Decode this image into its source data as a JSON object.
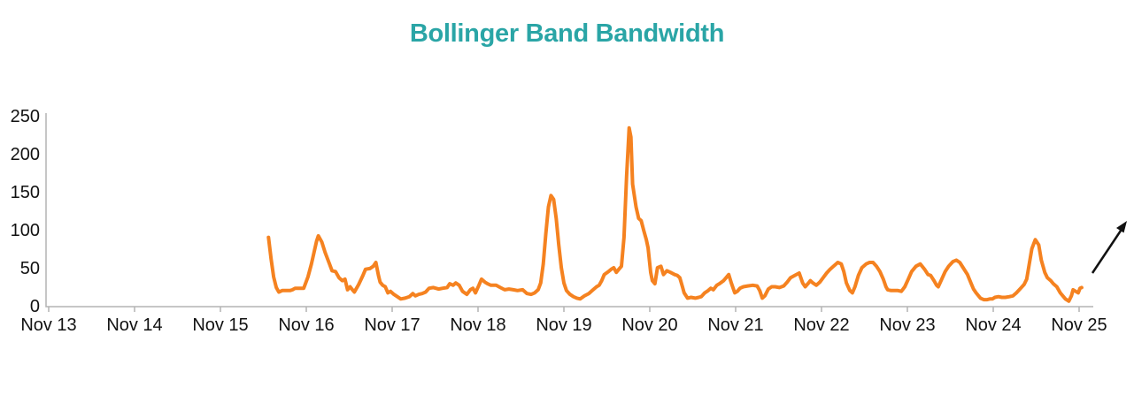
{
  "chart_data": {
    "type": "line",
    "title": "Bollinger Band Bandwidth",
    "xlabel": "",
    "ylabel": "",
    "grid": false,
    "legend": "none",
    "x_tick_labels": [
      "Nov 13",
      "Nov 14",
      "Nov 15",
      "Nov 16",
      "Nov 17",
      "Nov 18",
      "Nov 19",
      "Nov 20",
      "Nov 21",
      "Nov 22",
      "Nov 23",
      "Nov 24",
      "Nov 25"
    ],
    "y_tick_values": [
      0,
      50,
      100,
      150,
      200,
      250
    ],
    "ylim": [
      0,
      250
    ],
    "x_unit": "days since Nov 13 (fractional = intraday)",
    "series": [
      {
        "name": "Bollinger Band Bandwidth",
        "color": "#F58220",
        "points": [
          [
            2.56,
            90
          ],
          [
            2.59,
            62
          ],
          [
            2.62,
            38
          ],
          [
            2.65,
            24
          ],
          [
            2.68,
            18
          ],
          [
            2.72,
            20
          ],
          [
            2.77,
            20
          ],
          [
            2.81,
            20
          ],
          [
            2.84,
            21
          ],
          [
            2.87,
            23
          ],
          [
            2.92,
            23
          ],
          [
            2.97,
            23
          ],
          [
            3.02,
            38
          ],
          [
            3.06,
            55
          ],
          [
            3.09,
            70
          ],
          [
            3.12,
            85
          ],
          [
            3.14,
            92
          ],
          [
            3.18,
            84
          ],
          [
            3.22,
            70
          ],
          [
            3.27,
            55
          ],
          [
            3.3,
            46
          ],
          [
            3.34,
            45
          ],
          [
            3.38,
            37
          ],
          [
            3.42,
            33
          ],
          [
            3.45,
            35
          ],
          [
            3.48,
            21
          ],
          [
            3.51,
            25
          ],
          [
            3.53,
            22
          ],
          [
            3.56,
            18
          ],
          [
            3.61,
            28
          ],
          [
            3.66,
            40
          ],
          [
            3.69,
            48
          ],
          [
            3.74,
            49
          ],
          [
            3.78,
            52
          ],
          [
            3.81,
            57
          ],
          [
            3.84,
            40
          ],
          [
            3.86,
            31
          ],
          [
            3.89,
            27
          ],
          [
            3.92,
            25
          ],
          [
            3.95,
            17
          ],
          [
            3.98,
            19
          ],
          [
            4.02,
            15
          ],
          [
            4.06,
            12
          ],
          [
            4.1,
            9
          ],
          [
            4.15,
            10
          ],
          [
            4.2,
            12
          ],
          [
            4.24,
            16
          ],
          [
            4.27,
            13
          ],
          [
            4.31,
            15
          ],
          [
            4.35,
            16
          ],
          [
            4.39,
            18
          ],
          [
            4.43,
            23
          ],
          [
            4.48,
            24
          ],
          [
            4.54,
            22
          ],
          [
            4.59,
            23
          ],
          [
            4.64,
            24
          ],
          [
            4.67,
            29
          ],
          [
            4.71,
            27
          ],
          [
            4.74,
            30
          ],
          [
            4.78,
            27
          ],
          [
            4.82,
            19
          ],
          [
            4.87,
            15
          ],
          [
            4.91,
            21
          ],
          [
            4.94,
            23
          ],
          [
            4.97,
            17
          ],
          [
            5.01,
            27
          ],
          [
            5.04,
            35
          ],
          [
            5.08,
            31
          ],
          [
            5.11,
            29
          ],
          [
            5.15,
            27
          ],
          [
            5.21,
            27
          ],
          [
            5.26,
            24
          ],
          [
            5.31,
            21
          ],
          [
            5.36,
            22
          ],
          [
            5.41,
            21
          ],
          [
            5.46,
            20
          ],
          [
            5.52,
            21
          ],
          [
            5.57,
            16
          ],
          [
            5.62,
            15
          ],
          [
            5.66,
            17
          ],
          [
            5.7,
            21
          ],
          [
            5.73,
            30
          ],
          [
            5.76,
            55
          ],
          [
            5.79,
            95
          ],
          [
            5.82,
            130
          ],
          [
            5.85,
            145
          ],
          [
            5.88,
            140
          ],
          [
            5.91,
            115
          ],
          [
            5.94,
            80
          ],
          [
            5.97,
            50
          ],
          [
            6.0,
            30
          ],
          [
            6.03,
            20
          ],
          [
            6.07,
            15
          ],
          [
            6.11,
            12
          ],
          [
            6.15,
            10
          ],
          [
            6.19,
            9
          ],
          [
            6.24,
            13
          ],
          [
            6.29,
            16
          ],
          [
            6.34,
            21
          ],
          [
            6.38,
            25
          ],
          [
            6.41,
            27
          ],
          [
            6.44,
            33
          ],
          [
            6.47,
            41
          ],
          [
            6.52,
            45
          ],
          [
            6.55,
            48
          ],
          [
            6.58,
            50
          ],
          [
            6.61,
            44
          ],
          [
            6.64,
            48
          ],
          [
            6.67,
            52
          ],
          [
            6.7,
            90
          ],
          [
            6.73,
            170
          ],
          [
            6.76,
            234
          ],
          [
            6.78,
            222
          ],
          [
            6.8,
            160
          ],
          [
            6.84,
            130
          ],
          [
            6.87,
            115
          ],
          [
            6.9,
            112
          ],
          [
            6.93,
            99
          ],
          [
            6.96,
            87
          ],
          [
            6.98,
            76
          ],
          [
            7.01,
            44
          ],
          [
            7.03,
            33
          ],
          [
            7.06,
            29
          ],
          [
            7.09,
            50
          ],
          [
            7.13,
            52
          ],
          [
            7.16,
            41
          ],
          [
            7.2,
            46
          ],
          [
            7.24,
            44
          ],
          [
            7.29,
            41
          ],
          [
            7.32,
            40
          ],
          [
            7.35,
            37
          ],
          [
            7.38,
            25
          ],
          [
            7.4,
            17
          ],
          [
            7.44,
            10
          ],
          [
            7.48,
            11
          ],
          [
            7.53,
            10
          ],
          [
            7.57,
            11
          ],
          [
            7.6,
            12
          ],
          [
            7.64,
            17
          ],
          [
            7.68,
            20
          ],
          [
            7.71,
            23
          ],
          [
            7.74,
            21
          ],
          [
            7.78,
            27
          ],
          [
            7.81,
            29
          ],
          [
            7.86,
            33
          ],
          [
            7.89,
            37
          ],
          [
            7.92,
            41
          ],
          [
            7.95,
            30
          ],
          [
            7.99,
            17
          ],
          [
            8.02,
            19
          ],
          [
            8.05,
            23
          ],
          [
            8.09,
            25
          ],
          [
            8.14,
            26
          ],
          [
            8.2,
            27
          ],
          [
            8.25,
            26
          ],
          [
            8.28,
            20
          ],
          [
            8.31,
            10
          ],
          [
            8.34,
            13
          ],
          [
            8.38,
            22
          ],
          [
            8.42,
            25
          ],
          [
            8.46,
            25
          ],
          [
            8.51,
            24
          ],
          [
            8.56,
            26
          ],
          [
            8.6,
            31
          ],
          [
            8.64,
            37
          ],
          [
            8.69,
            40
          ],
          [
            8.74,
            43
          ],
          [
            8.78,
            30
          ],
          [
            8.81,
            25
          ],
          [
            8.85,
            30
          ],
          [
            8.87,
            33
          ],
          [
            8.9,
            30
          ],
          [
            8.94,
            27
          ],
          [
            8.98,
            31
          ],
          [
            9.02,
            37
          ],
          [
            9.06,
            43
          ],
          [
            9.1,
            48
          ],
          [
            9.14,
            52
          ],
          [
            9.19,
            57
          ],
          [
            9.23,
            55
          ],
          [
            9.26,
            45
          ],
          [
            9.29,
            30
          ],
          [
            9.33,
            20
          ],
          [
            9.36,
            17
          ],
          [
            9.39,
            25
          ],
          [
            9.43,
            40
          ],
          [
            9.47,
            50
          ],
          [
            9.52,
            55
          ],
          [
            9.56,
            57
          ],
          [
            9.6,
            57
          ],
          [
            9.64,
            52
          ],
          [
            9.68,
            45
          ],
          [
            9.72,
            35
          ],
          [
            9.75,
            25
          ],
          [
            9.77,
            21
          ],
          [
            9.81,
            20
          ],
          [
            9.85,
            20
          ],
          [
            9.89,
            20
          ],
          [
            9.93,
            19
          ],
          [
            9.97,
            25
          ],
          [
            10.01,
            35
          ],
          [
            10.05,
            45
          ],
          [
            10.1,
            52
          ],
          [
            10.15,
            55
          ],
          [
            10.2,
            48
          ],
          [
            10.24,
            41
          ],
          [
            10.27,
            40
          ],
          [
            10.31,
            33
          ],
          [
            10.34,
            27
          ],
          [
            10.36,
            25
          ],
          [
            10.4,
            35
          ],
          [
            10.44,
            45
          ],
          [
            10.48,
            52
          ],
          [
            10.53,
            58
          ],
          [
            10.57,
            60
          ],
          [
            10.61,
            57
          ],
          [
            10.65,
            50
          ],
          [
            10.7,
            41
          ],
          [
            10.74,
            30
          ],
          [
            10.77,
            22
          ],
          [
            10.8,
            17
          ],
          [
            10.85,
            10
          ],
          [
            10.89,
            8
          ],
          [
            10.93,
            8
          ],
          [
            10.96,
            9
          ],
          [
            10.99,
            9
          ],
          [
            11.02,
            11
          ],
          [
            11.06,
            12
          ],
          [
            11.1,
            11
          ],
          [
            11.14,
            11
          ],
          [
            11.19,
            12
          ],
          [
            11.23,
            13
          ],
          [
            11.27,
            17
          ],
          [
            11.32,
            23
          ],
          [
            11.36,
            28
          ],
          [
            11.39,
            35
          ],
          [
            11.42,
            55
          ],
          [
            11.45,
            75
          ],
          [
            11.49,
            87
          ],
          [
            11.53,
            80
          ],
          [
            11.56,
            60
          ],
          [
            11.6,
            44
          ],
          [
            11.63,
            37
          ],
          [
            11.67,
            33
          ],
          [
            11.7,
            29
          ],
          [
            11.74,
            25
          ],
          [
            11.78,
            17
          ],
          [
            11.84,
            9
          ],
          [
            11.88,
            6
          ],
          [
            11.91,
            13
          ],
          [
            11.93,
            21
          ],
          [
            11.96,
            19
          ],
          [
            11.99,
            17
          ],
          [
            12.01,
            23
          ],
          [
            12.03,
            24
          ]
        ]
      }
    ],
    "annotations": [
      {
        "type": "arrow",
        "direction": "up-right",
        "position": "right edge, beside end of series"
      }
    ]
  },
  "colors": {
    "title": "#2AA5A6",
    "line": "#F58220",
    "axis": "#B3B3B3",
    "tick_label": "#111111",
    "arrow": "#111111",
    "background": "#FFFFFF"
  }
}
